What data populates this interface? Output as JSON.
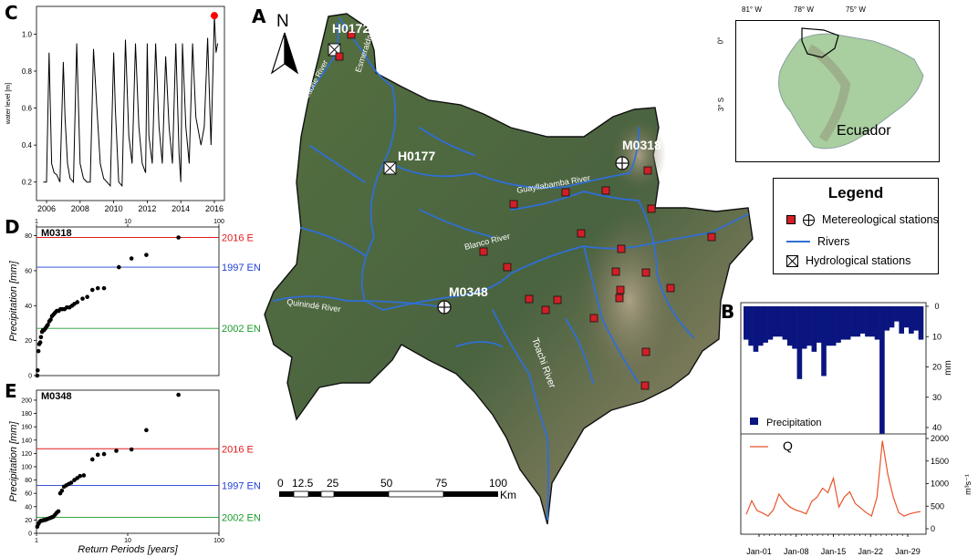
{
  "panels": {
    "a": "A",
    "b": "B",
    "c": "C",
    "d": "D",
    "e": "E"
  },
  "map": {
    "north": "N",
    "stations": [
      "H0172",
      "H0177",
      "M0318",
      "M0348"
    ],
    "rivers": {
      "teaone": "Teaone River",
      "esmeraldas": "Esmeraldas River",
      "guayllabamba": "Guayllabamba River",
      "blanco": "Blanco River",
      "quininde": "Quinindé River",
      "toachi": "Toachi River"
    },
    "scale": {
      "ticks": [
        "0",
        "12.5",
        "25",
        "50",
        "75",
        "100"
      ],
      "unit": "Km"
    },
    "colors": {
      "terrain": "#4a6340",
      "river": "#2f6fd6",
      "station": "#d21f26",
      "border": "#111111"
    }
  },
  "inset": {
    "lon_ticks": [
      "81° W",
      "78° W",
      "75° W"
    ],
    "lat_ticks": [
      "0°",
      "3° S"
    ],
    "country": "Ecuador"
  },
  "legend": {
    "title": "Legend",
    "items": [
      "Metereological stations",
      "Rivers",
      "Hydrological stations"
    ]
  },
  "chart_data": [
    {
      "id": "C",
      "type": "line",
      "ylabel": "water level [m]",
      "xlim": [
        2005.4,
        2016.6
      ],
      "ylim": [
        0.1,
        1.15
      ],
      "x_ticks": [
        "2006",
        "2008",
        "2010",
        "2012",
        "2014",
        "2016"
      ],
      "y_ticks": [
        "0.2",
        "0.4",
        "0.6",
        "0.8",
        "1.0"
      ],
      "x": [
        2005.8,
        2006.0,
        2006.15,
        2006.3,
        2006.45,
        2006.6,
        2006.8,
        2007.0,
        2007.1,
        2007.25,
        2007.4,
        2007.6,
        2007.8,
        2008.0,
        2008.2,
        2008.4,
        2008.6,
        2008.8,
        2009.0,
        2009.2,
        2009.4,
        2009.6,
        2009.8,
        2010.0,
        2010.1,
        2010.3,
        2010.5,
        2010.7,
        2010.9,
        2011.1,
        2011.3,
        2011.5,
        2011.7,
        2011.9,
        2012.0,
        2012.1,
        2012.3,
        2012.5,
        2012.7,
        2012.9,
        2013.1,
        2013.3,
        2013.5,
        2013.7,
        2013.9,
        2014.0,
        2014.1,
        2014.3,
        2014.5,
        2014.7,
        2014.9,
        2015.2,
        2015.4,
        2015.6,
        2015.8,
        2016.0,
        2016.1,
        2016.2
      ],
      "y": [
        0.2,
        0.2,
        0.9,
        0.3,
        0.25,
        0.24,
        0.2,
        0.85,
        0.55,
        0.3,
        0.22,
        0.2,
        0.95,
        0.3,
        0.22,
        0.2,
        0.2,
        0.92,
        0.6,
        0.3,
        0.22,
        0.2,
        0.18,
        0.9,
        0.6,
        0.2,
        0.18,
        0.97,
        0.45,
        0.3,
        0.95,
        0.5,
        0.3,
        0.25,
        0.95,
        0.45,
        0.3,
        0.95,
        0.5,
        0.3,
        0.88,
        0.5,
        0.3,
        0.95,
        0.35,
        0.2,
        0.95,
        0.5,
        0.3,
        0.95,
        0.55,
        0.4,
        0.5,
        0.98,
        0.4,
        1.1,
        0.9,
        0.95
      ],
      "highlight": {
        "x": 2016.0,
        "y": 1.1,
        "color": "#ff0000"
      }
    },
    {
      "id": "D",
      "type": "scatter",
      "station": "M0318",
      "xlabel": "",
      "ylabel": "Precipitation [mm]",
      "log_x": true,
      "xlim": [
        1,
        100
      ],
      "ylim": [
        0,
        85
      ],
      "x_ticks_top": [
        "1",
        "10",
        "100"
      ],
      "y_ticks": [
        "0",
        "20",
        "40",
        "60",
        "80"
      ],
      "points": [
        [
          1.02,
          0
        ],
        [
          1.03,
          3
        ],
        [
          1.05,
          14
        ],
        [
          1.07,
          18
        ],
        [
          1.1,
          19
        ],
        [
          1.12,
          22
        ],
        [
          1.15,
          25
        ],
        [
          1.18,
          26
        ],
        [
          1.21,
          26
        ],
        [
          1.25,
          27
        ],
        [
          1.29,
          28
        ],
        [
          1.33,
          29
        ],
        [
          1.38,
          31
        ],
        [
          1.43,
          32
        ],
        [
          1.48,
          34
        ],
        [
          1.54,
          35
        ],
        [
          1.6,
          36
        ],
        [
          1.67,
          37
        ],
        [
          1.75,
          37
        ],
        [
          1.83,
          38
        ],
        [
          1.92,
          38
        ],
        [
          2.03,
          38
        ],
        [
          2.15,
          39
        ],
        [
          2.3,
          39
        ],
        [
          2.46,
          40
        ],
        [
          2.6,
          41
        ],
        [
          2.8,
          42
        ],
        [
          3.2,
          44
        ],
        [
          3.6,
          45
        ],
        [
          4.1,
          49
        ],
        [
          4.7,
          50
        ],
        [
          5.5,
          50
        ],
        [
          8,
          62
        ],
        [
          11,
          67
        ],
        [
          16,
          69
        ],
        [
          36,
          79
        ]
      ],
      "reference_lines": [
        {
          "label": "2016 E",
          "value": 79,
          "color": "#e31a1c"
        },
        {
          "label": "1997 EN",
          "value": 62,
          "color": "#1f3fd6"
        },
        {
          "label": "2002 EN",
          "value": 27,
          "color": "#1a9a2a"
        }
      ]
    },
    {
      "id": "E",
      "type": "scatter",
      "station": "M0348",
      "xlabel": "Return Periods [years]",
      "ylabel": "Precipitation [mm]",
      "log_x": true,
      "xlim": [
        1,
        100
      ],
      "ylim": [
        0,
        215
      ],
      "x_ticks": [
        "1",
        "10",
        "100"
      ],
      "y_ticks": [
        "0",
        "20",
        "40",
        "60",
        "80",
        "100",
        "120",
        "140",
        "160",
        "180",
        "200"
      ],
      "points": [
        [
          1.02,
          10
        ],
        [
          1.05,
          14
        ],
        [
          1.08,
          17
        ],
        [
          1.12,
          19
        ],
        [
          1.16,
          19
        ],
        [
          1.2,
          20
        ],
        [
          1.25,
          20
        ],
        [
          1.3,
          21
        ],
        [
          1.35,
          22
        ],
        [
          1.41,
          23
        ],
        [
          1.47,
          24
        ],
        [
          1.53,
          25
        ],
        [
          1.6,
          28
        ],
        [
          1.67,
          31
        ],
        [
          1.74,
          33
        ],
        [
          1.82,
          60
        ],
        [
          1.9,
          64
        ],
        [
          2.0,
          70
        ],
        [
          2.12,
          72
        ],
        [
          2.25,
          74
        ],
        [
          2.4,
          76
        ],
        [
          2.6,
          80
        ],
        [
          2.8,
          83
        ],
        [
          3.0,
          86
        ],
        [
          3.3,
          87
        ],
        [
          4.1,
          111
        ],
        [
          4.7,
          118
        ],
        [
          5.5,
          119
        ],
        [
          7.5,
          124
        ],
        [
          11,
          126
        ],
        [
          16,
          155
        ],
        [
          36,
          208
        ]
      ],
      "reference_lines": [
        {
          "label": "2016 E",
          "value": 127,
          "color": "#e31a1c"
        },
        {
          "label": "1997 EN",
          "value": 72,
          "color": "#1f3fd6"
        },
        {
          "label": "2002 EN",
          "value": 24,
          "color": "#1a9a2a"
        }
      ]
    },
    {
      "id": "B",
      "type": "bar+line",
      "categories": [
        "Jan-01",
        "Jan-08",
        "Jan-15",
        "Jan-22",
        "Jan-29"
      ],
      "precip": {
        "name": "Precipitation",
        "unit": "mm",
        "color": "#0a1580",
        "y_ticks": [
          "0",
          "10",
          "20",
          "30",
          "40"
        ],
        "ylim": [
          0,
          40
        ],
        "values": [
          11,
          13,
          15,
          13,
          12,
          11,
          10,
          10,
          11,
          13,
          14,
          24,
          14,
          13,
          15,
          12,
          23,
          13,
          13,
          12,
          11,
          11,
          10,
          10,
          9,
          10,
          10,
          11,
          42,
          8,
          7,
          5,
          9,
          7,
          9,
          8,
          11
        ]
      },
      "discharge": {
        "name": "Q",
        "unit": "m³s⁻¹",
        "color": "#e8542a",
        "y_ticks": [
          "0",
          "500",
          "1000",
          "1500",
          "2000"
        ],
        "ylim": [
          0,
          2000
        ],
        "values": [
          320,
          620,
          400,
          350,
          280,
          420,
          770,
          600,
          480,
          420,
          380,
          330,
          600,
          700,
          900,
          800,
          1120,
          480,
          700,
          820,
          560,
          460,
          360,
          280,
          700,
          1950,
          1200,
          700,
          360,
          280,
          330,
          360,
          380
        ]
      }
    }
  ]
}
